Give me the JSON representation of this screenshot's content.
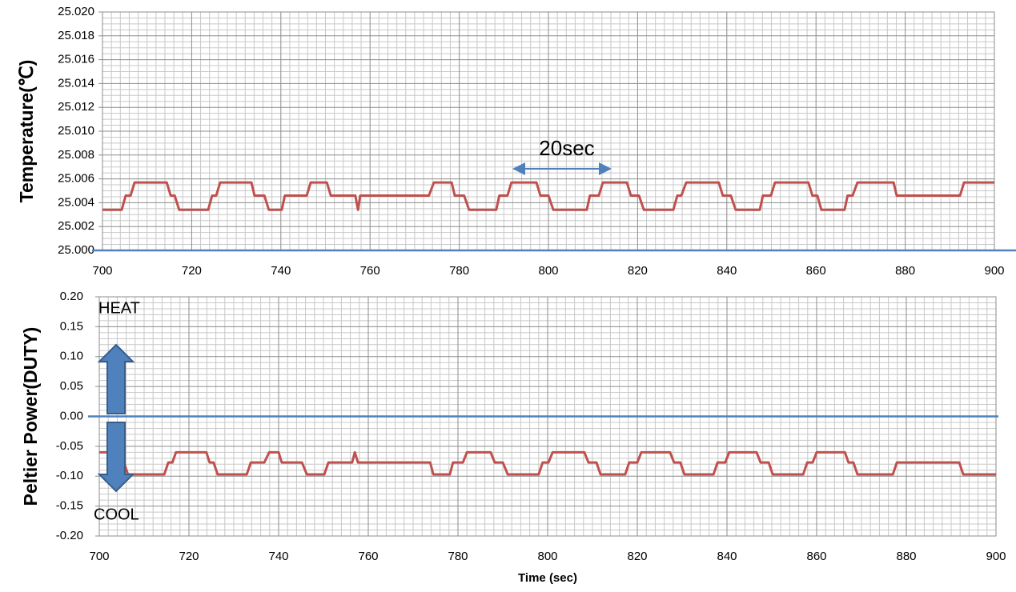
{
  "chart_data": [
    {
      "type": "line",
      "y_label": "Temperature(℃)",
      "annotation": "20sec",
      "xlim": [
        700,
        900
      ],
      "xticks": [
        700,
        720,
        740,
        760,
        780,
        800,
        820,
        840,
        860,
        880,
        900
      ],
      "ylim": [
        25.0,
        25.02
      ],
      "yticks": [
        {
          "value": 25.0,
          "label": "25.000"
        },
        25.002,
        25.004,
        25.006,
        25.008,
        {
          "value": 25.01,
          "label": "25.010"
        },
        25.012,
        25.014,
        25.016,
        25.018,
        {
          "value": 25.02,
          "label": "25.020"
        }
      ],
      "grid": true,
      "minor_grid": {
        "x": 10,
        "y": 4
      },
      "x": [
        700,
        704.3,
        705.2,
        706.3,
        707.2,
        714.4,
        715.3,
        716.2,
        717.2,
        723.7,
        724.6,
        725.5,
        726.4,
        733.4,
        734.1,
        736.3,
        737.3,
        740.2,
        740.9,
        745.8,
        746.7,
        750.3,
        751.2,
        756.7,
        757.3,
        757.8,
        773.2,
        774.3,
        778.3,
        779.0,
        781.1,
        782.2,
        788.3,
        789.0,
        790.8,
        791.7,
        797.3,
        798.2,
        800.0,
        801.1,
        808.6,
        809.3,
        811.3,
        812.2,
        817.6,
        818.5,
        820.3,
        821.4,
        828.0,
        828.9,
        829.8,
        830.9,
        838.2,
        839.1,
        840.9,
        842.0,
        847.4,
        848.1,
        849.9,
        850.8,
        858.3,
        859.2,
        860.3,
        861.2,
        866.4,
        867.1,
        868.2,
        869.3,
        877.4,
        878.1,
        892.3,
        893.2,
        900
      ],
      "series": [
        {
          "color": "#c0504d",
          "values": [
            25.0034,
            25.0034,
            25.0046,
            25.0046,
            25.0057,
            25.0057,
            25.0046,
            25.0046,
            25.0034,
            25.0034,
            25.0046,
            25.0046,
            25.0057,
            25.0057,
            25.0046,
            25.0046,
            25.0034,
            25.0034,
            25.0046,
            25.0046,
            25.0057,
            25.0057,
            25.0046,
            25.0046,
            25.0034,
            25.0046,
            25.0046,
            25.0057,
            25.0057,
            25.0046,
            25.0046,
            25.0034,
            25.0034,
            25.0046,
            25.0046,
            25.0057,
            25.0057,
            25.0046,
            25.0046,
            25.0034,
            25.0034,
            25.0046,
            25.0046,
            25.0057,
            25.0057,
            25.0046,
            25.0046,
            25.0034,
            25.0034,
            25.0046,
            25.0046,
            25.0057,
            25.0057,
            25.0046,
            25.0046,
            25.0034,
            25.0034,
            25.0046,
            25.0046,
            25.0057,
            25.0057,
            25.0046,
            25.0046,
            25.0034,
            25.0034,
            25.0046,
            25.0046,
            25.0057,
            25.0057,
            25.0046,
            25.0046,
            25.0057,
            25.0057
          ]
        }
      ]
    },
    {
      "type": "line",
      "y_label": "Peltier Power(DUTY)",
      "x_label": "Time (sec)",
      "annotations": [
        "HEAT",
        "COOL"
      ],
      "xlim": [
        700,
        900
      ],
      "xticks": [
        700,
        720,
        740,
        760,
        780,
        800,
        820,
        840,
        860,
        880,
        900
      ],
      "ylim": [
        -0.2,
        0.2
      ],
      "yticks": [
        {
          "value": 0.2,
          "label": "0.20"
        },
        0.15,
        {
          "value": 0.1,
          "label": "0.10"
        },
        0.05,
        {
          "value": 0,
          "label": "0.00"
        },
        -0.05,
        {
          "value": -0.1,
          "label": "-0.10"
        },
        -0.15,
        {
          "value": -0.2,
          "label": "-0.20"
        }
      ],
      "grid": true,
      "minor_grid": {
        "x": 10,
        "y": 5
      },
      "x": [
        700,
        702.9,
        703.8,
        705.5,
        706.4,
        714.5,
        715.4,
        716.3,
        717.1,
        723.9,
        724.6,
        725.5,
        726.4,
        732.9,
        733.8,
        736.8,
        737.9,
        740.0,
        740.7,
        745.2,
        746.3,
        750.2,
        751.1,
        756.4,
        757.0,
        757.7,
        773.8,
        774.5,
        778.2,
        778.9,
        781.1,
        782.0,
        787.3,
        788.2,
        790.0,
        791.1,
        798.0,
        798.9,
        800.2,
        801.1,
        808.2,
        809.1,
        810.9,
        811.8,
        817.3,
        818.2,
        820.0,
        820.9,
        827.3,
        828.2,
        829.6,
        830.5,
        837.0,
        837.9,
        839.6,
        840.5,
        846.6,
        847.5,
        849.3,
        850.2,
        857.0,
        857.9,
        859.1,
        860.0,
        866.3,
        867.1,
        868.2,
        869.1,
        877.0,
        877.9,
        891.8,
        892.7,
        900
      ],
      "series": [
        {
          "color": "#c0504d",
          "values": [
            -0.06,
            -0.06,
            -0.077,
            -0.077,
            -0.097,
            -0.097,
            -0.077,
            -0.077,
            -0.06,
            -0.06,
            -0.077,
            -0.077,
            -0.097,
            -0.097,
            -0.077,
            -0.077,
            -0.06,
            -0.06,
            -0.077,
            -0.077,
            -0.097,
            -0.097,
            -0.077,
            -0.077,
            -0.06,
            -0.077,
            -0.077,
            -0.097,
            -0.097,
            -0.077,
            -0.077,
            -0.06,
            -0.06,
            -0.077,
            -0.077,
            -0.097,
            -0.097,
            -0.077,
            -0.077,
            -0.06,
            -0.06,
            -0.077,
            -0.077,
            -0.097,
            -0.097,
            -0.077,
            -0.077,
            -0.06,
            -0.06,
            -0.077,
            -0.077,
            -0.097,
            -0.097,
            -0.077,
            -0.077,
            -0.06,
            -0.06,
            -0.077,
            -0.077,
            -0.097,
            -0.097,
            -0.077,
            -0.077,
            -0.06,
            -0.06,
            -0.077,
            -0.077,
            -0.097,
            -0.097,
            -0.077,
            -0.077,
            -0.097,
            -0.097
          ]
        }
      ]
    }
  ]
}
